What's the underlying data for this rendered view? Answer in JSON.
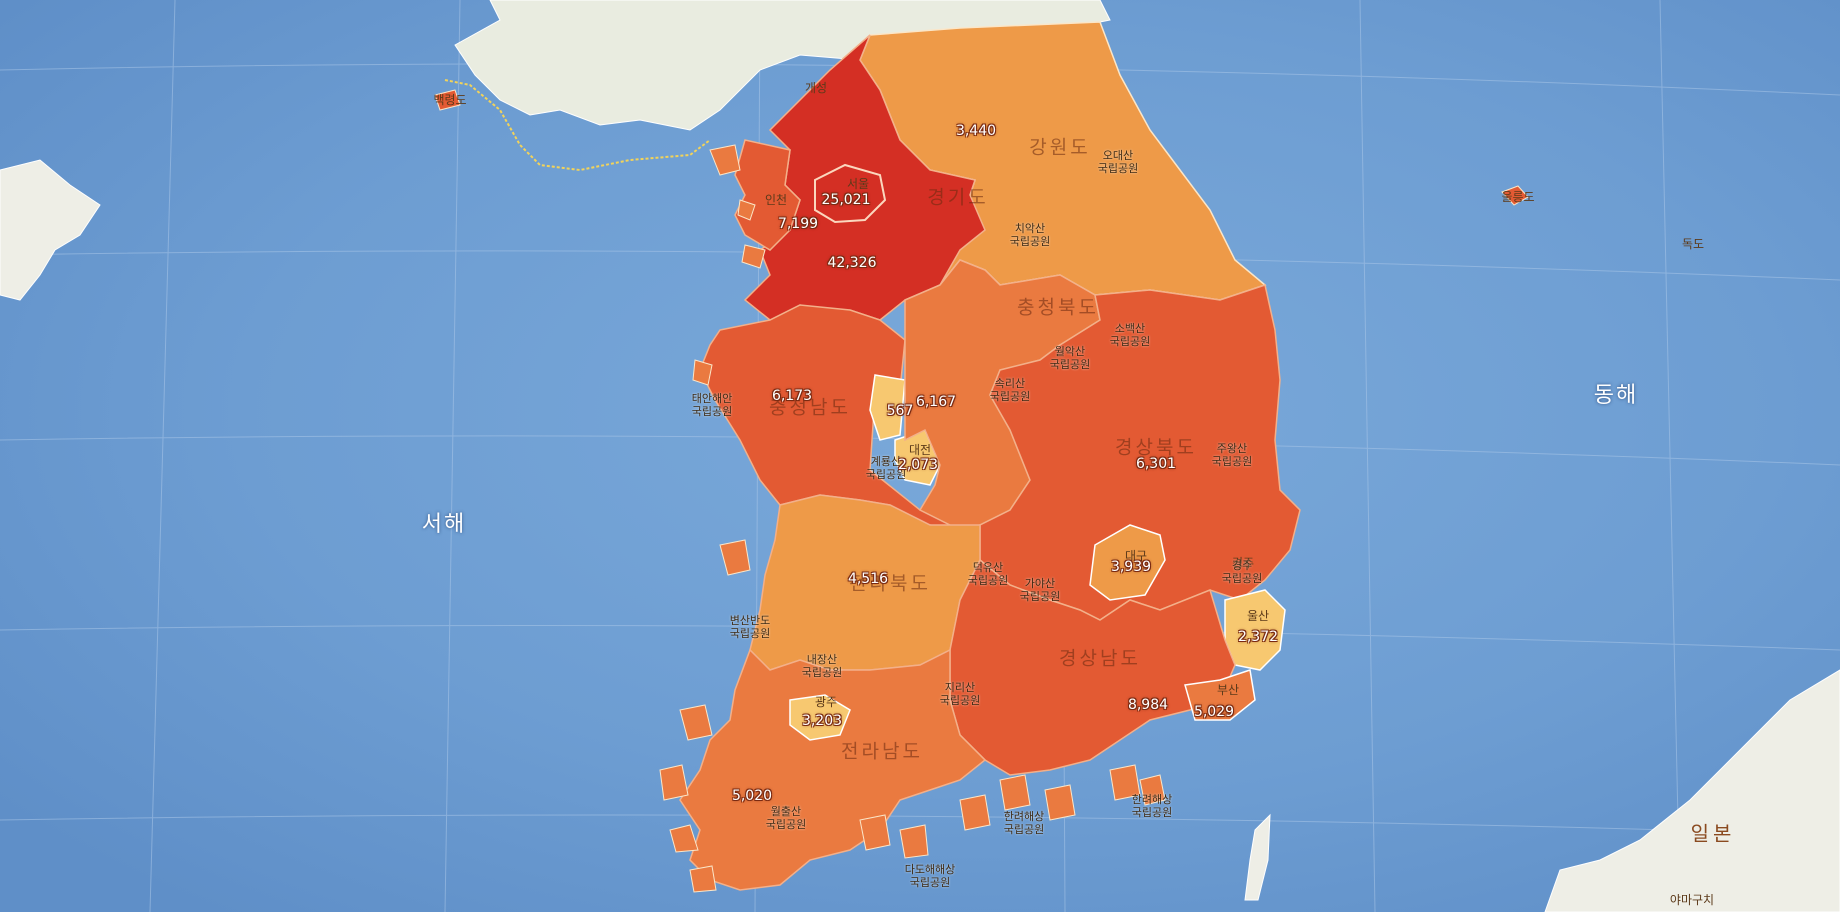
{
  "map": {
    "sea_labels": {
      "west": "서해",
      "east": "동해"
    },
    "japan_labels": {
      "country": "일본",
      "city": "야마구치"
    },
    "province_labels": {
      "gangwon": "강원도",
      "gyeonggi": "경기도",
      "chungbuk": "충청북도",
      "chungnam": "충청남도",
      "gyeongbuk": "경상북도",
      "jeonbuk": "전라북도",
      "gyeongnam": "경상남도",
      "jeonnam": "전라남도"
    },
    "city_labels": {
      "gaeseong": "개성",
      "baengnyeong": "백령도",
      "ulleung": "울릉도",
      "dokdo": "독도",
      "incheon": "인천",
      "seoul": "서울",
      "daejeon": "대전",
      "daegu": "대구",
      "ulsan": "울산",
      "busan": "부산",
      "gwangju": "광주",
      "gyeongju": "경주"
    },
    "park_labels": [
      "오대산\n국립공원",
      "치악산\n국립공원",
      "소백산\n국립공원",
      "월악산\n국립공원",
      "속리산\n국립공원",
      "태안해안\n국립공원",
      "계룡산\n국립공원",
      "주왕산\n국립공원",
      "경주\n국립공원",
      "덕유산\n국립공원",
      "가야산\n국립공원",
      "변산반도\n국립공원",
      "내장산\n국립공원",
      "지리산\n국립공원",
      "월출산\n국립공원",
      "한려해상\n국립공원",
      "다도해해상\n국립공원",
      "한려해상\n국립공원"
    ],
    "values": {
      "gyeonggi": "42,326",
      "seoul": "25,021",
      "incheon": "7,199",
      "gangwon": "3,440",
      "chungnam": "6,173",
      "sejong": "567",
      "chungbuk": "6,167",
      "daejeon": "2,073",
      "gyeongbuk": "6,301",
      "jeonbuk": "4,516",
      "daegu": "3,939",
      "ulsan": "2,372",
      "gyeongnam": "8,984",
      "busan": "5,029",
      "gwangju": "3,203",
      "jeonnam": "5,020"
    },
    "colors": {
      "sea": "#6f9fd4",
      "highest": "#d42f24",
      "high": "#e35a33",
      "mid": "#ea7a40",
      "low": "#ee9a48",
      "lowest": "#f7c870"
    }
  }
}
